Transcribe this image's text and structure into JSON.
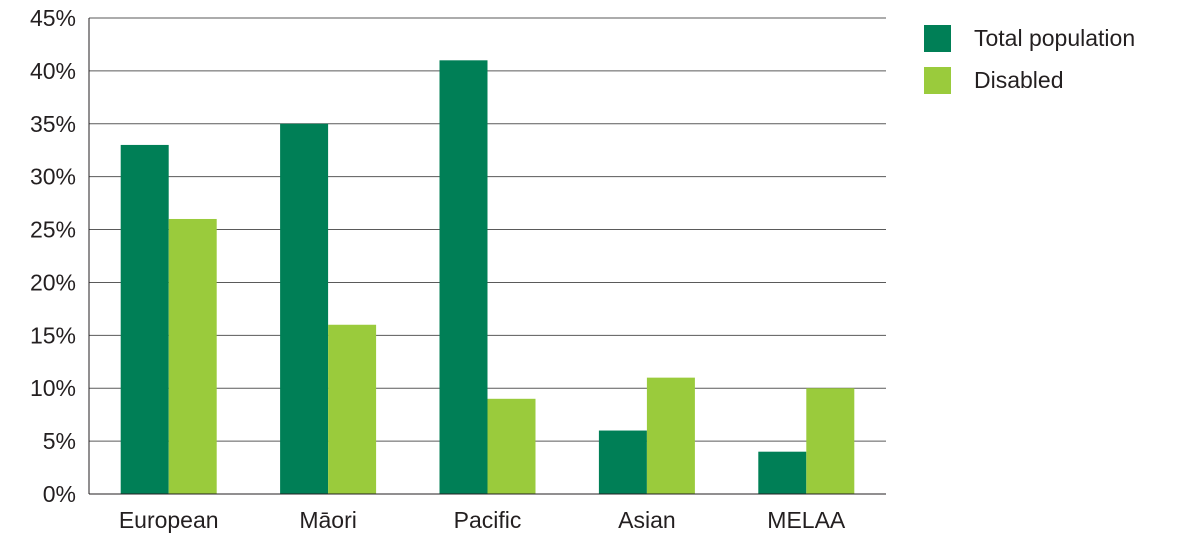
{
  "chart_data": {
    "type": "bar",
    "title": "",
    "xlabel": "",
    "ylabel": "",
    "categories": [
      "European",
      "Māori",
      "Pacific",
      "Asian",
      "MELAA"
    ],
    "series": [
      {
        "name": "Total population",
        "color": "#007f56",
        "values": [
          33,
          35,
          41,
          6,
          4
        ]
      },
      {
        "name": "Disabled",
        "color": "#9acb3c",
        "values": [
          26,
          16,
          9,
          11,
          10
        ]
      }
    ],
    "ylim": [
      0,
      45
    ],
    "yticks": [
      0,
      5,
      10,
      15,
      20,
      25,
      30,
      35,
      40,
      45
    ],
    "ytick_suffix": "%",
    "grid": true,
    "legend_position": "top-right"
  }
}
